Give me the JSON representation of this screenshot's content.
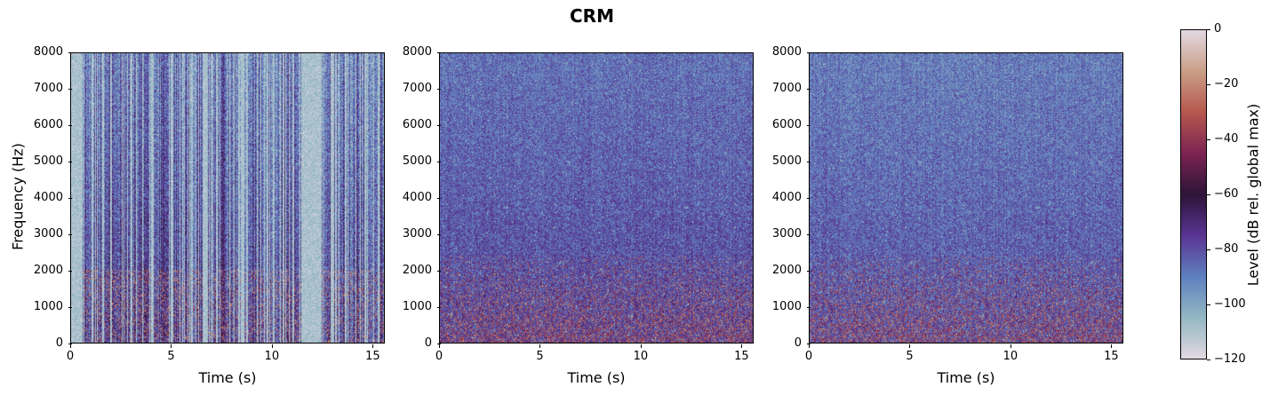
{
  "chart_data": {
    "type": "heatmap",
    "title": "CRM",
    "panels": [
      {
        "name": "panel-1",
        "xlabel": "Time (s)",
        "ylabel": "Frequency (Hz)",
        "style": "sparse_light"
      },
      {
        "name": "panel-2",
        "xlabel": "Time (s)",
        "ylabel": "",
        "style": "dense_dark"
      },
      {
        "name": "panel-3",
        "xlabel": "Time (s)",
        "ylabel": "",
        "style": "dense_mid"
      }
    ],
    "xlim": [
      0,
      15.6
    ],
    "ylim": [
      0,
      8000
    ],
    "x_ticks": [
      "0",
      "5",
      "10",
      "15"
    ],
    "x_tick_values": [
      0,
      5,
      10,
      15
    ],
    "y_ticks": [
      "0",
      "1000",
      "2000",
      "3000",
      "4000",
      "5000",
      "6000",
      "7000",
      "8000"
    ],
    "colorbar": {
      "label": "Level (dB rel. global max)",
      "range": [
        -120,
        0
      ],
      "ticks": [
        "0",
        "−20",
        "−40",
        "−60",
        "−80",
        "−100",
        "−120"
      ],
      "colormap": "twilight",
      "stops": [
        "#e2d9e2",
        "#94b8c4",
        "#5f80c0",
        "#5a3593",
        "#2e1539",
        "#7d2453",
        "#b7584f",
        "#cb9f86",
        "#e2d9e2"
      ]
    }
  }
}
